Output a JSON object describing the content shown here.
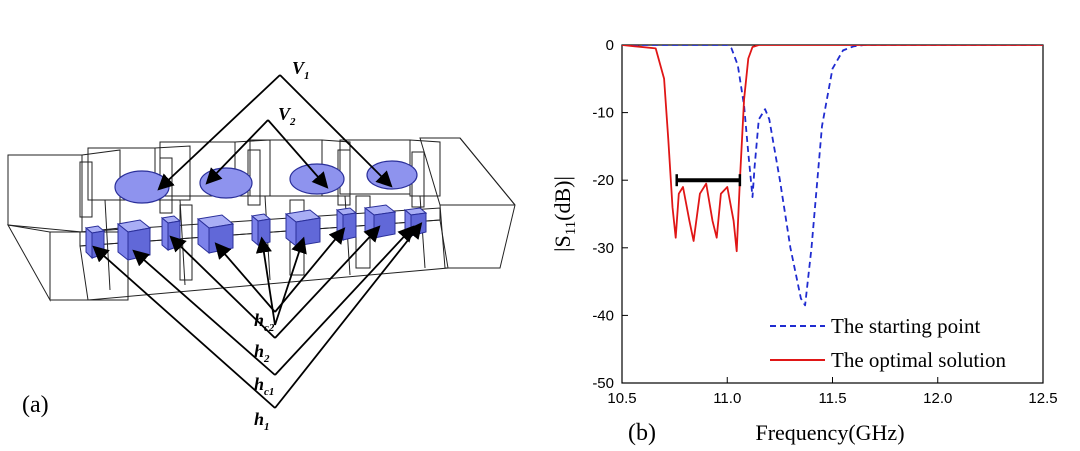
{
  "panel_a": {
    "label": "(a)",
    "labels": {
      "v1": {
        "main": "V",
        "sub": "1"
      },
      "v2": {
        "main": "V",
        "sub": "2"
      },
      "hc2": {
        "main": "h",
        "sub": "c2"
      },
      "h2": {
        "main": "h",
        "sub": "2"
      },
      "hc1": {
        "main": "h",
        "sub": "c1"
      },
      "h1": {
        "main": "h",
        "sub": "1"
      }
    }
  },
  "chart_data": {
    "type": "line",
    "panel_label": "(b)",
    "xlabel": "Frequency(GHz)",
    "ylabel_main": "|S",
    "ylabel_sub": "11",
    "ylabel_tail": "(dB)|",
    "xlim": [
      10.5,
      12.5
    ],
    "ylim": [
      -50,
      0
    ],
    "xticks": [
      "10.5",
      "11.0",
      "11.5",
      "12.0",
      "12.5"
    ],
    "yticks": [
      "0",
      "-10",
      "-20",
      "-30",
      "-40",
      "-50"
    ],
    "xtick_values": [
      10.5,
      11.0,
      11.5,
      12.0,
      12.5
    ],
    "ytick_values": [
      0,
      -10,
      -20,
      -30,
      -40,
      -50
    ],
    "legend_position": "bottom-right",
    "spec_line": {
      "x": [
        10.76,
        11.06
      ],
      "y": -20
    },
    "series": [
      {
        "name": "The starting point",
        "color": "#1f2bd0",
        "dash": "dashed",
        "x": [
          10.5,
          11.0,
          11.02,
          11.05,
          11.08,
          11.1,
          11.12,
          11.13,
          11.15,
          11.18,
          11.2,
          11.25,
          11.3,
          11.35,
          11.37,
          11.4,
          11.45,
          11.5,
          11.55,
          11.6,
          11.65,
          12.5
        ],
        "y": [
          0,
          0,
          -0.5,
          -3,
          -9,
          -16,
          -22.5,
          -18,
          -11,
          -9.5,
          -11,
          -20,
          -30,
          -37.5,
          -38.5,
          -30,
          -12,
          -3.5,
          -0.8,
          -0.2,
          0,
          0
        ]
      },
      {
        "name": "The optimal solution",
        "color": "#e01616",
        "dash": "solid",
        "x": [
          10.5,
          10.66,
          10.7,
          10.72,
          10.74,
          10.755,
          10.77,
          10.79,
          10.82,
          10.84,
          10.87,
          10.9,
          10.93,
          10.95,
          10.97,
          11.0,
          11.03,
          11.045,
          11.06,
          11.08,
          11.1,
          11.12,
          11.15,
          12.5
        ],
        "y": [
          0,
          -0.5,
          -5,
          -14,
          -24,
          -28.5,
          -22,
          -21,
          -26,
          -29,
          -22,
          -20.5,
          -26,
          -28.5,
          -22,
          -21,
          -26,
          -30.5,
          -20,
          -8,
          -2,
          -0.3,
          0,
          0
        ]
      }
    ]
  }
}
